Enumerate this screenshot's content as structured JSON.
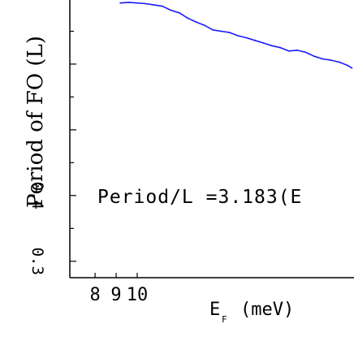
{
  "chart_data": {
    "type": "line",
    "ylabel": "Period of FO (L)",
    "xlabel": "E",
    "xlabel_sub": "F",
    "xlabel_unit": "(meV)",
    "annotation": "Period/L =3.183(E",
    "xticks": [
      "8",
      "9",
      "10"
    ],
    "yticks": [
      "0.4",
      "0.3"
    ],
    "xlim": [
      6.8,
      20.3
    ],
    "ylim": [
      0.275,
      0.7
    ],
    "grid": false,
    "series": [
      {
        "color": "#1a1aff",
        "x": [
          9.2,
          9.6,
          10.0,
          10.4,
          10.8,
          11.2,
          11.6,
          12.0,
          12.4,
          12.8,
          13.2,
          13.6,
          14.0,
          14.4,
          14.8,
          15.2,
          15.6,
          16.0,
          16.4,
          16.8,
          17.2,
          17.6,
          18.0,
          18.4,
          18.8,
          19.2,
          19.6,
          20.0,
          20.2
        ],
        "y": [
          0.693,
          0.694,
          0.693,
          0.692,
          0.69,
          0.688,
          0.682,
          0.678,
          0.67,
          0.664,
          0.659,
          0.652,
          0.65,
          0.648,
          0.643,
          0.64,
          0.636,
          0.632,
          0.628,
          0.625,
          0.62,
          0.621,
          0.618,
          0.612,
          0.608,
          0.606,
          0.603,
          0.598,
          0.594
        ]
      }
    ]
  }
}
